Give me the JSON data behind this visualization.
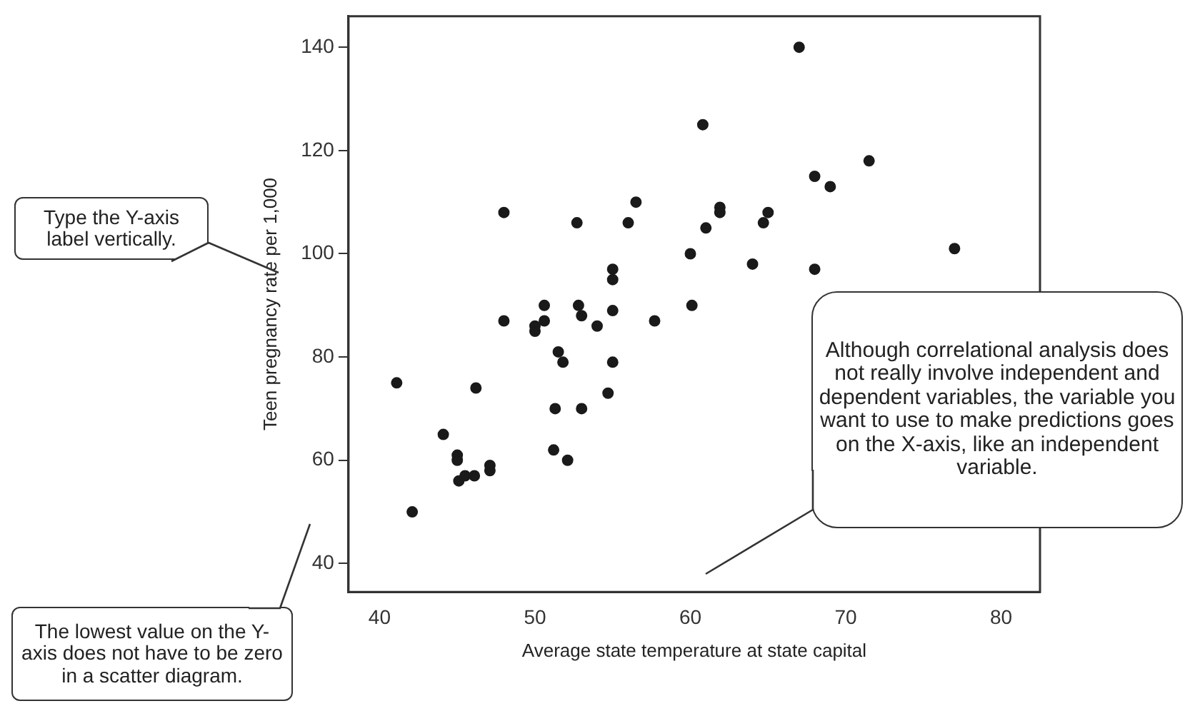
{
  "chart_data": {
    "type": "scatter",
    "xlabel": "Average state temperature at state capital",
    "ylabel": "Teen pregnancy rate per 1,000",
    "annotations": [
      "Type the Y-axis label vertically.",
      "Although correlational analysis does not really involve independent and dependent variables, the variable you want to use to make predictions goes on the X-axis, like an independent variable.",
      "The lowest value on the Y- axis does not have to be zero in a scatter diagram."
    ],
    "x": [
      41.1,
      42.1,
      44.1,
      45,
      45,
      45.1,
      45.5,
      46.1,
      46.2,
      47.1,
      47.1,
      48,
      48,
      50,
      50,
      50.6,
      50.6,
      51.2,
      51.3,
      51.5,
      51.8,
      52.1,
      52.7,
      52.8,
      53,
      53,
      54,
      54.7,
      55,
      55,
      55,
      55,
      56,
      56.5,
      57.7,
      60,
      60.1,
      60.8,
      61,
      61.9,
      61.9,
      64,
      64.7,
      65,
      67,
      68,
      68,
      69,
      71.5,
      77
    ],
    "values": [
      75,
      50,
      65,
      61,
      60,
      56,
      57,
      57,
      74,
      59,
      58,
      108,
      87,
      86,
      85,
      87,
      90,
      62,
      70,
      81,
      79,
      60,
      106,
      90,
      88,
      70,
      86,
      73,
      97,
      95,
      89,
      79,
      106,
      110,
      87,
      100,
      90,
      125,
      105,
      109,
      108,
      98,
      106,
      108,
      140,
      115,
      97,
      113,
      118,
      101
    ],
    "color": "#1a1a1a",
    "marker": "circle",
    "xlim": [
      38,
      82.5
    ],
    "ylim": [
      34.5,
      146
    ],
    "xticks": [
      40,
      50,
      60,
      70,
      80
    ],
    "yticks": [
      40,
      60,
      80,
      100,
      120,
      140
    ]
  }
}
